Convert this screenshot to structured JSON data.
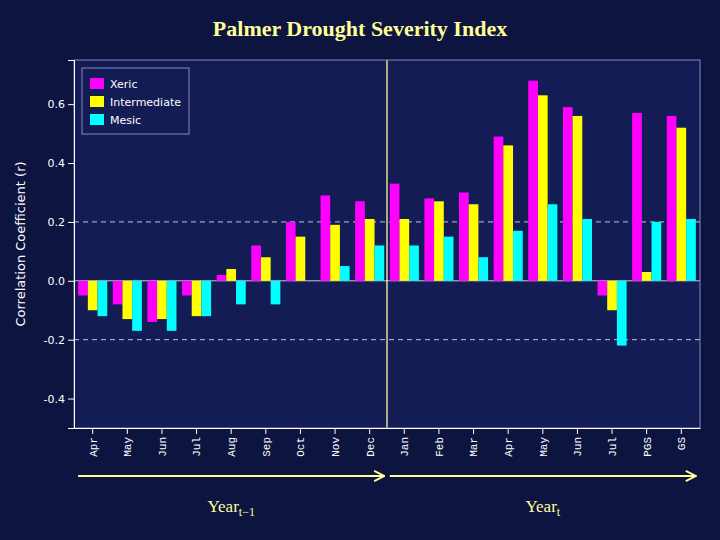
{
  "chart_data": {
    "type": "bar",
    "title": "Palmer Drought Severity Index",
    "ylabel": "Correlation Coefficient (r)",
    "categories": [
      "Apr",
      "May",
      "Jun",
      "Jul",
      "Aug",
      "Sep",
      "Oct",
      "Nov",
      "Dec",
      "Jan",
      "Feb",
      "Mar",
      "Apr",
      "May",
      "Jun",
      "Jul",
      "PGS",
      "GS"
    ],
    "series": [
      {
        "name": "Xeric",
        "color": "#FF00FF",
        "values": [
          -0.05,
          -0.08,
          -0.14,
          -0.05,
          0.02,
          0.12,
          0.2,
          0.29,
          0.27,
          0.33,
          0.28,
          0.3,
          0.49,
          0.68,
          0.59,
          -0.05,
          0.57,
          0.56
        ]
      },
      {
        "name": "Intermediate",
        "color": "#FFFF00",
        "values": [
          -0.1,
          -0.13,
          -0.13,
          -0.12,
          0.04,
          0.08,
          0.15,
          0.19,
          0.21,
          0.21,
          0.27,
          0.26,
          0.46,
          0.63,
          0.56,
          -0.1,
          0.03,
          0.52
        ]
      },
      {
        "name": "Mesic",
        "color": "#00FFFF",
        "values": [
          -0.12,
          -0.17,
          -0.17,
          -0.12,
          -0.08,
          -0.08,
          0.0,
          0.05,
          0.12,
          0.12,
          0.15,
          0.08,
          0.17,
          0.26,
          0.21,
          -0.22,
          0.2,
          0.21
        ]
      }
    ],
    "ylim": [
      -0.5,
      0.75
    ],
    "yticks": [
      -0.4,
      -0.2,
      {
        "value": 0,
        "label": "0.0"
      },
      0.2,
      0.4,
      0.6
    ],
    "reference_lines": [
      {
        "value": 0.2,
        "line_style": "dashed"
      },
      {
        "value": -0.2,
        "line_style": "dashed"
      },
      {
        "value": 0,
        "line_style": "solid"
      }
    ],
    "annotations": [
      {
        "text": "Year",
        "subscript": "t−1",
        "span": [
          0,
          8
        ]
      },
      {
        "text": "Year",
        "subscript": "t",
        "span": [
          9,
          17
        ]
      }
    ],
    "legend": "upper left",
    "grid": false
  }
}
